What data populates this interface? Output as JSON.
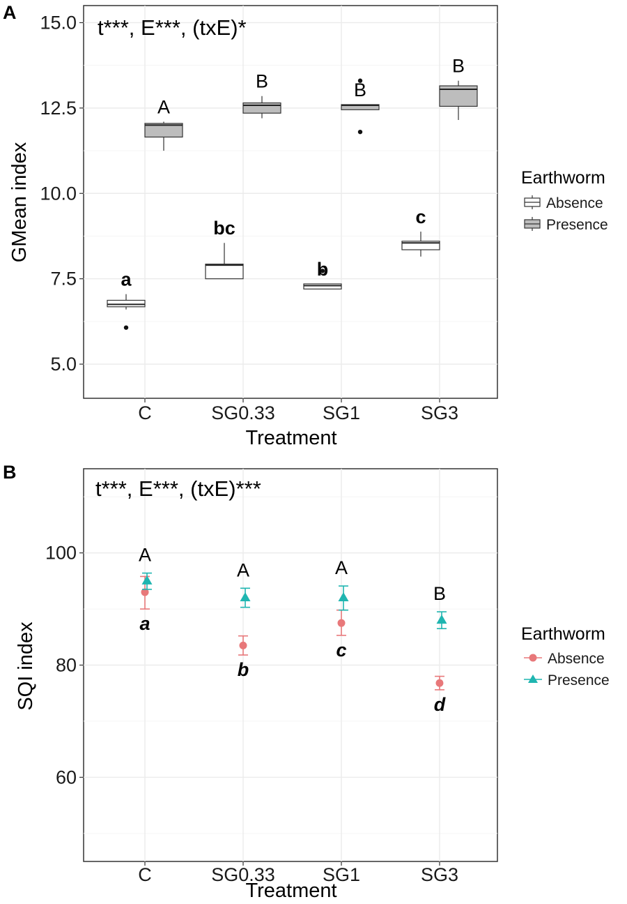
{
  "figure": {
    "panels": [
      "A",
      "B"
    ]
  },
  "chart_data": [
    {
      "panel": "A",
      "type": "box",
      "stat_text": "t***, E***, (txE)*",
      "xlabel": "Treatment",
      "ylabel": "GMean index",
      "ylim": [
        4.0,
        15.5
      ],
      "yticks": [
        5.0,
        7.5,
        10.0,
        12.5,
        15.0
      ],
      "ytick_labels": [
        "5.0",
        "7.5",
        "10.0",
        "12.5",
        "15.0"
      ],
      "categories": [
        "C",
        "SG0.33",
        "SG1",
        "SG3"
      ],
      "legend": {
        "title": "Earthworm",
        "items": [
          {
            "label": "Absence",
            "fill": "#ffffff"
          },
          {
            "label": "Presence",
            "fill": "#bdbdbd"
          }
        ]
      },
      "series": [
        {
          "name": "Absence",
          "fill": "#ffffff",
          "boxes": [
            {
              "category": "C",
              "min": 6.6,
              "q1": 6.68,
              "median": 6.75,
              "q3": 6.87,
              "max": 7.05,
              "outliers": [
                6.07
              ],
              "letter": "a"
            },
            {
              "category": "SG0.33",
              "min": 7.5,
              "q1": 7.5,
              "median": 7.9,
              "q3": 7.93,
              "max": 8.55,
              "outliers": [],
              "letter": "bc"
            },
            {
              "category": "SG1",
              "min": 7.2,
              "q1": 7.2,
              "median": 7.3,
              "q3": 7.35,
              "max": 7.35,
              "outliers": [
                7.73
              ],
              "letter": "b"
            },
            {
              "category": "SG3",
              "min": 8.15,
              "q1": 8.35,
              "median": 8.55,
              "q3": 8.6,
              "max": 8.88,
              "outliers": [],
              "letter": "c"
            }
          ]
        },
        {
          "name": "Presence",
          "fill": "#bdbdbd",
          "boxes": [
            {
              "category": "C",
              "min": 11.25,
              "q1": 11.65,
              "median": 12.0,
              "q3": 12.05,
              "max": 12.1,
              "outliers": [],
              "letter": "A"
            },
            {
              "category": "SG0.33",
              "min": 12.2,
              "q1": 12.35,
              "median": 12.58,
              "q3": 12.65,
              "max": 12.85,
              "outliers": [],
              "letter": "B"
            },
            {
              "category": "SG1",
              "min": 12.45,
              "q1": 12.45,
              "median": 12.58,
              "q3": 12.6,
              "max": 12.6,
              "outliers": [
                13.3,
                11.8
              ],
              "letter": "B"
            },
            {
              "category": "SG3",
              "min": 12.15,
              "q1": 12.55,
              "median": 13.05,
              "q3": 13.15,
              "max": 13.3,
              "outliers": [],
              "letter": "B"
            }
          ]
        }
      ]
    },
    {
      "panel": "B",
      "type": "scatter",
      "stat_text": "t***, E***, (txE)***",
      "xlabel": "Treatment",
      "ylabel": "SQI index",
      "ylim": [
        45,
        115
      ],
      "yticks": [
        60,
        80,
        100
      ],
      "ytick_labels": [
        "60",
        "80",
        "100"
      ],
      "categories": [
        "C",
        "SG0.33",
        "SG1",
        "SG3"
      ],
      "legend": {
        "title": "Earthworm",
        "items": [
          {
            "label": "Absence",
            "color": "#e8787a",
            "shape": "circle"
          },
          {
            "label": "Presence",
            "color": "#1fb5b0",
            "shape": "triangle"
          }
        ]
      },
      "series": [
        {
          "name": "Absence",
          "color": "#e8787a",
          "shape": "circle",
          "points": [
            {
              "category": "C",
              "mean": 93.0,
              "lower": 90.0,
              "upper": 95.8,
              "letter": "a"
            },
            {
              "category": "SG0.33",
              "mean": 83.5,
              "lower": 81.8,
              "upper": 85.2,
              "letter": "b"
            },
            {
              "category": "SG1",
              "mean": 87.5,
              "lower": 85.3,
              "upper": 89.8,
              "letter": "c"
            },
            {
              "category": "SG3",
              "mean": 76.8,
              "lower": 75.6,
              "upper": 78.0,
              "letter": "d"
            }
          ]
        },
        {
          "name": "Presence",
          "color": "#1fb5b0",
          "shape": "triangle",
          "points": [
            {
              "category": "C",
              "mean": 95.0,
              "lower": 93.5,
              "upper": 96.4,
              "letter": "A"
            },
            {
              "category": "SG0.33",
              "mean": 92.0,
              "lower": 90.3,
              "upper": 93.7,
              "letter": "A"
            },
            {
              "category": "SG1",
              "mean": 92.0,
              "lower": 89.8,
              "upper": 94.1,
              "letter": "A"
            },
            {
              "category": "SG3",
              "mean": 88.0,
              "lower": 86.5,
              "upper": 89.5,
              "letter": "B"
            }
          ]
        }
      ]
    }
  ]
}
